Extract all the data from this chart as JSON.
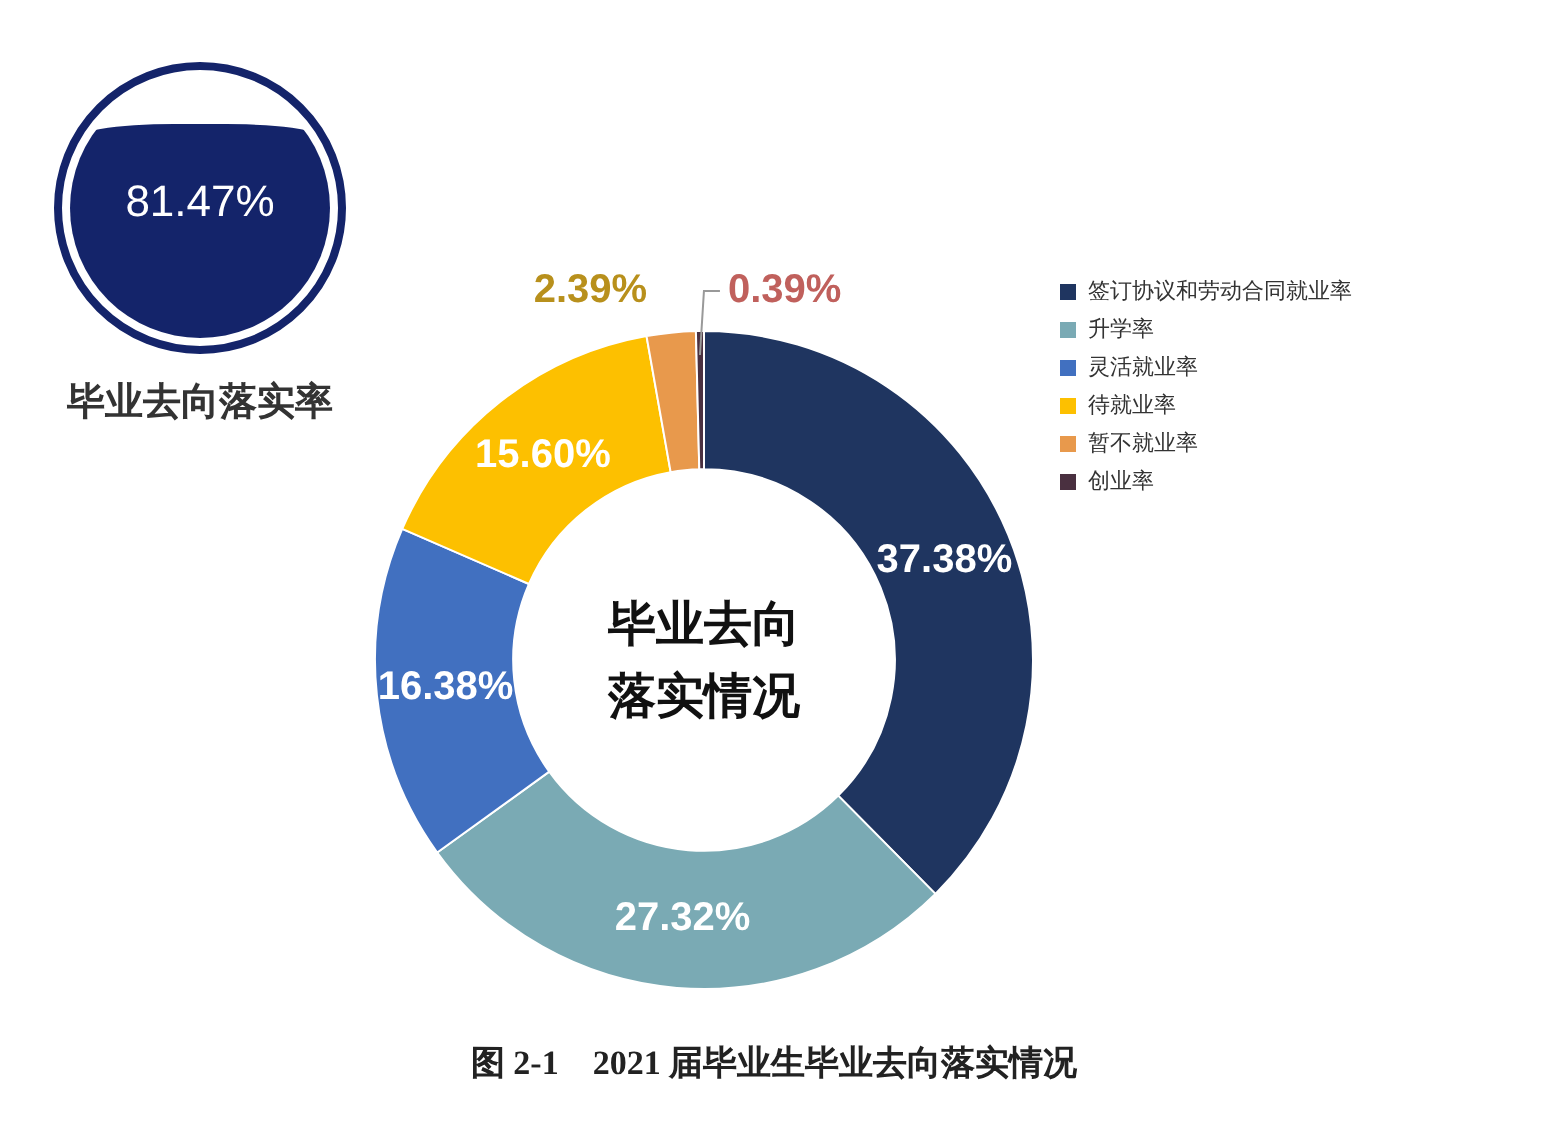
{
  "chart_data": [
    {
      "type": "other",
      "annotations": [
        "81.47%",
        "毕业去向落实率"
      ]
    },
    {
      "type": "donut",
      "title": "毕业去向落实情况",
      "categories": [
        "签订协议和劳动合同就业率",
        "升学率",
        "灵活就业率",
        "待就业率",
        "暂不就业率",
        "创业率"
      ],
      "values": [
        37.38,
        27.32,
        16.38,
        15.6,
        2.39,
        0.39
      ],
      "colors": [
        "#1f3560",
        "#7aaab4",
        "#4170c0",
        "#fdc000",
        "#e8994c",
        "#4a3040"
      ],
      "value_labels": [
        "37.38%",
        "27.32%",
        "16.38%",
        "15.60%",
        "2.39%",
        "0.39%"
      ],
      "legend": "right",
      "annotations": [
        "图 2-1    2021 届毕业生毕业去向落实情况"
      ]
    }
  ]
}
